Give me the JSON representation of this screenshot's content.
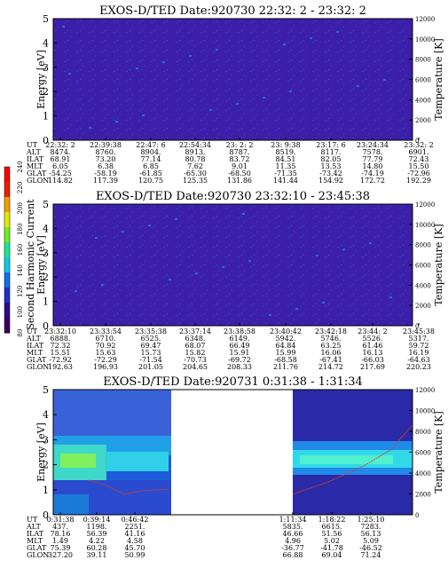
{
  "chart_data": [
    {
      "type": "heatmap",
      "title": "EXOS-D/TED    Date:920730   22:32: 2 - 23:32: 2",
      "ylabel": "Energy [eV]",
      "y2label": "Temperature [K]",
      "ylim": [
        0,
        5
      ],
      "yticks": [
        "0",
        "1",
        "2",
        "3",
        "4",
        "5"
      ],
      "y2lim": [
        0,
        12000
      ],
      "y2ticks": [
        "0",
        "2000",
        "4000",
        "6000",
        "8000",
        "10000",
        "12000"
      ],
      "rows": [
        {
          "name": "UT",
          "values": [
            "22:32: 2",
            "22:39:38",
            "22:47: 6",
            "22:54:34",
            "23: 2: 2",
            "23: 9:38",
            "23:17: 6",
            "23:24:34",
            "23:32: 2"
          ]
        },
        {
          "name": "ALT",
          "values": [
            "8474.",
            "8760.",
            "8904.",
            "8913.",
            "8787.",
            "8519.",
            "8117.",
            "7578.",
            "6901."
          ]
        },
        {
          "name": "ILAT",
          "values": [
            "68.91",
            "73.20",
            "77.14",
            "80.78",
            "83.72",
            "84.51",
            "82.05",
            "77.79",
            "72.43"
          ]
        },
        {
          "name": "MLT",
          "values": [
            "6.05",
            "6.38",
            "6.85",
            "7.62",
            "9.01",
            "11.35",
            "13.53",
            "14.80",
            "15.50"
          ]
        },
        {
          "name": "GLAT",
          "values": [
            "-54.25",
            "-58.19",
            "-61.85",
            "-65.30",
            "-68.50",
            "-71.35",
            "-73.42",
            "-74.19",
            "-72.96"
          ]
        },
        {
          "name": "GLON",
          "values": [
            "114.82",
            "117.39",
            "120.75",
            "125.35",
            "131.86",
            "141.44",
            "154.92",
            "172.72",
            "192.29"
          ]
        }
      ]
    },
    {
      "type": "heatmap",
      "title": "EXOS-D/TED    Date:920730   23:32:10 - 23:45:38",
      "ylabel": "Energy [eV]",
      "y2label": "Temperature [K]",
      "ylim": [
        0,
        5
      ],
      "yticks": [
        "0",
        "1",
        "2",
        "3",
        "4",
        "5"
      ],
      "y2lim": [
        0,
        12000
      ],
      "y2ticks": [
        "0",
        "2000",
        "4000",
        "6000",
        "8000",
        "10000",
        "12000"
      ],
      "rows": [
        {
          "name": "UT",
          "values": [
            "23:32:10",
            "23:33:54",
            "23:35:38",
            "23:37:14",
            "23:38:58",
            "23:40:42",
            "23:42:18",
            "23:44: 2",
            "23:45:38"
          ]
        },
        {
          "name": "ALT",
          "values": [
            "6888.",
            "6710.",
            "6525.",
            "6348.",
            "6149.",
            "5942.",
            "5746.",
            "5526.",
            "5317."
          ]
        },
        {
          "name": "ILAT",
          "values": [
            "72.32",
            "70.92",
            "69.47",
            "68.07",
            "66.49",
            "64.84",
            "63.25",
            "61.46",
            "59.72"
          ]
        },
        {
          "name": "MLT",
          "values": [
            "15.51",
            "15.63",
            "15.73",
            "15.82",
            "15.91",
            "15.99",
            "16.06",
            "16.13",
            "16.19"
          ]
        },
        {
          "name": "GLAT",
          "values": [
            "-72.92",
            "-72.29",
            "-71.54",
            "-70.73",
            "-69.72",
            "-68.58",
            "-67.41",
            "-66.03",
            "-64.63"
          ]
        },
        {
          "name": "GLON",
          "values": [
            "192.63",
            "196.93",
            "201.05",
            "204.65",
            "208.33",
            "211.76",
            "214.72",
            "217.69",
            "220.23"
          ]
        }
      ]
    },
    {
      "type": "heatmap",
      "title": "EXOS-D/TED    Date:920731   0:31:38 - 1:31:34",
      "ylabel": "Energy [eV]",
      "y2label": "Temperature [K]",
      "ylim": [
        0,
        5
      ],
      "yticks": [
        "0",
        "1",
        "2",
        "3",
        "4",
        "5"
      ],
      "y2lim": [
        0,
        12000
      ],
      "y2ticks": [
        "0",
        "2000",
        "4000",
        "6000",
        "8000",
        "10000",
        "12000"
      ],
      "rows": [
        {
          "name": "UT",
          "values": [
            "0:31:38",
            "0:39:14",
            "0:46:42",
            "",
            "",
            "1:11:34",
            "1:18:22",
            "1:25:10"
          ]
        },
        {
          "name": "ALT",
          "values": [
            "437.",
            "1198.",
            "2251.",
            "",
            "",
            "5835.",
            "6615.",
            "7283."
          ]
        },
        {
          "name": "ILAT",
          "values": [
            "78.16",
            "56.39",
            "41.16",
            "",
            "",
            "46.66",
            "51.56",
            "56.13"
          ]
        },
        {
          "name": "MLT",
          "values": [
            "1.49",
            "4.22",
            "4.58",
            "",
            "",
            "4.96",
            "5.02",
            "5.09"
          ]
        },
        {
          "name": "GLAT",
          "values": [
            "75.39",
            "60.28",
            "45.70",
            "",
            "",
            "-36.77",
            "-41.78",
            "-46.52"
          ]
        },
        {
          "name": "GLON",
          "values": [
            "327.20",
            "39.11",
            "50.99",
            "",
            "",
            "66.88",
            "69.04",
            "71.24"
          ]
        }
      ]
    }
  ],
  "colorbar": {
    "label": "Second Harmonic Current",
    "ticks": [
      "80",
      "100",
      "120",
      "140",
      "160",
      "180",
      "200",
      "220",
      "240"
    ],
    "colors": [
      "#3a005a",
      "#2a0a8a",
      "#1f2fd0",
      "#0f6ef0",
      "#10c8e8",
      "#18e890",
      "#70f020",
      "#e8e800",
      "#f0a000",
      "#e82000",
      "#ff0000"
    ]
  }
}
